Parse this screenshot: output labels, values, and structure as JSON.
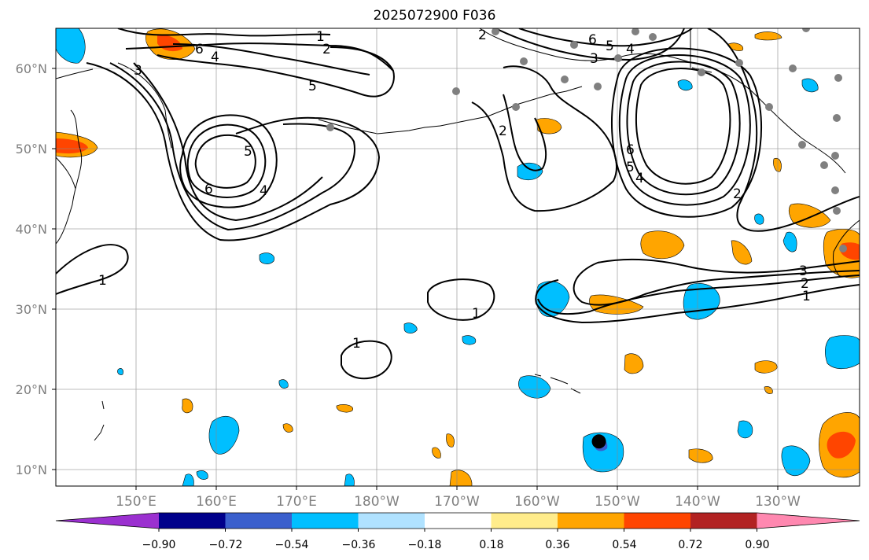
{
  "title": "2025072900 F036",
  "lat_labels": [
    "60°N",
    "50°N",
    "40°N",
    "30°N",
    "20°N",
    "10°N"
  ],
  "lon_labels": [
    "150°E",
    "160°E",
    "170°E",
    "180°W",
    "170°W",
    "160°W",
    "150°W",
    "140°W",
    "130°W"
  ],
  "colorbar": {
    "ticks": [
      "−0.90",
      "−0.72",
      "−0.54",
      "−0.36",
      "−0.18",
      "0.18",
      "0.36",
      "0.54",
      "0.72",
      "0.90"
    ],
    "colors": [
      "#9b30d0",
      "#00008b",
      "#3a5fcd",
      "#00bfff",
      "#b0e2ff",
      "#ffffff",
      "#ffec8b",
      "#ffa500",
      "#ff4500",
      "#b22222",
      "#ff88b0"
    ]
  },
  "contour_labels": [
    "1",
    "2",
    "3",
    "4",
    "5",
    "6",
    "5",
    "4",
    "6",
    "2",
    "6",
    "5",
    "4",
    "3",
    "2",
    "6",
    "5",
    "4",
    "2",
    "3",
    "2",
    "1",
    "1",
    "1",
    "1"
  ],
  "marker": {
    "lat": 13.5,
    "lon": -152.3
  }
}
